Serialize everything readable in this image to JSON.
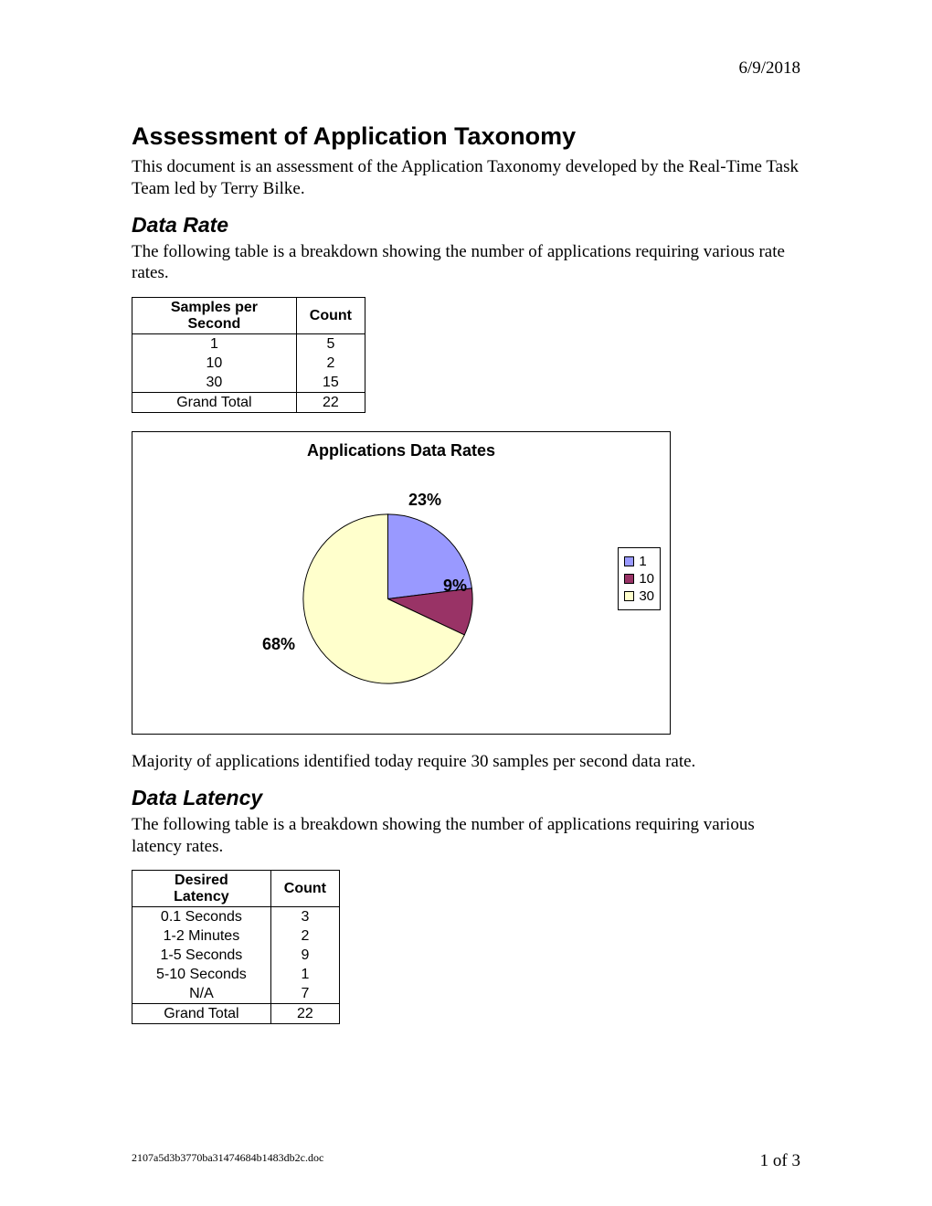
{
  "header": {
    "date": "6/9/2018"
  },
  "title": "Assessment of Application Taxonomy",
  "intro": "This document is an assessment of the Application Taxonomy developed by the Real-Time Task Team led by Terry Bilke.",
  "section1": {
    "heading": "Data Rate",
    "text": "The following table is a breakdown showing the number of applications requiring various rate rates.",
    "table": {
      "col1": "Samples per Second",
      "col2": "Count",
      "rows": [
        {
          "k": "1",
          "v": "5"
        },
        {
          "k": "10",
          "v": "2"
        },
        {
          "k": "30",
          "v": "15"
        }
      ],
      "total_label": "Grand Total",
      "total_value": "22"
    },
    "chart": {
      "type": "pie",
      "title": "Applications Data Rates",
      "background_color": "#ffffff",
      "border_color": "#000000",
      "title_fontsize": 18,
      "label_fontsize": 18,
      "slices": [
        {
          "label": "1",
          "pct": 23,
          "color": "#9999ff",
          "pct_label": "23%"
        },
        {
          "label": "10",
          "pct": 9,
          "color": "#993366",
          "pct_label": "9%"
        },
        {
          "label": "30",
          "pct": 68,
          "color": "#ffffcc",
          "pct_label": "68%"
        }
      ],
      "legend_items": [
        {
          "label": "1",
          "color": "#9999ff"
        },
        {
          "label": "10",
          "color": "#993366"
        },
        {
          "label": "30",
          "color": "#ffffcc"
        }
      ]
    },
    "after_chart": "Majority of applications identified today require 30 samples per second data rate."
  },
  "section2": {
    "heading": "Data Latency",
    "text": "The following table is a breakdown showing the number of applications requiring various latency rates.",
    "table": {
      "col1": "Desired Latency",
      "col2": "Count",
      "rows": [
        {
          "k": "0.1 Seconds",
          "v": "3"
        },
        {
          "k": "1-2 Minutes",
          "v": "2"
        },
        {
          "k": "1-5 Seconds",
          "v": "9"
        },
        {
          "k": "5-10 Seconds",
          "v": "1"
        },
        {
          "k": "N/A",
          "v": "7"
        }
      ],
      "total_label": "Grand Total",
      "total_value": "22"
    }
  },
  "footer": {
    "filename": "2107a5d3b3770ba31474684b1483db2c.doc",
    "page": "1 of 3"
  }
}
